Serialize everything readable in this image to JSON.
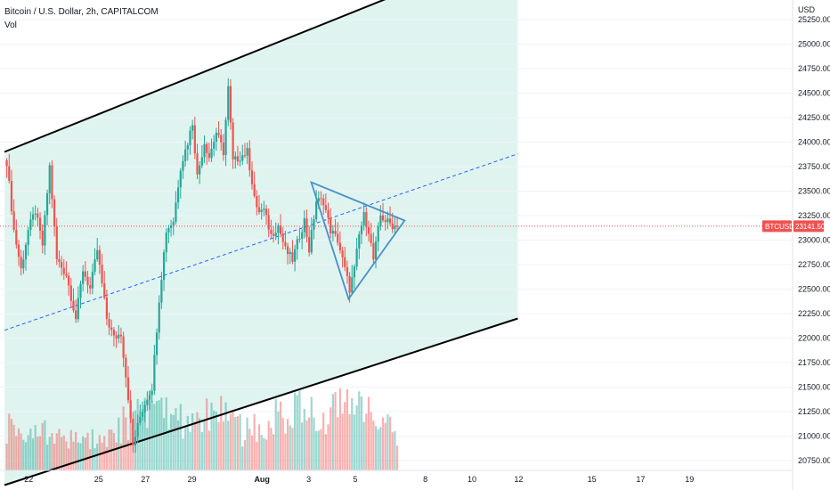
{
  "legend": {
    "title": "Bitcoin / U.S. Dollar, 2h, CAPITALCOM",
    "volume": "Vol"
  },
  "axis": {
    "currency": "USD",
    "y_ticks": [
      "25250.00",
      "25000.00",
      "24750.00",
      "24500.00",
      "24250.00",
      "24000.00",
      "23750.00",
      "23500.00",
      "23250.00",
      "23000.00",
      "22750.00",
      "22500.00",
      "22250.00",
      "22000.00",
      "21750.00",
      "21500.00",
      "21250.00",
      "21000.00",
      "20750.00"
    ],
    "x_ticks": [
      {
        "label": "22",
        "bold": false
      },
      {
        "label": "25",
        "bold": false
      },
      {
        "label": "27",
        "bold": false
      },
      {
        "label": "29",
        "bold": false
      },
      {
        "label": "Aug",
        "bold": true
      },
      {
        "label": "3",
        "bold": false
      },
      {
        "label": "5",
        "bold": false
      },
      {
        "label": "8",
        "bold": false
      },
      {
        "label": "10",
        "bold": false
      },
      {
        "label": "12",
        "bold": false
      },
      {
        "label": "15",
        "bold": false
      },
      {
        "label": "17",
        "bold": false
      },
      {
        "label": "19",
        "bold": false
      }
    ]
  },
  "price_label": {
    "symbol": "BTCUSD",
    "value": "23141.50"
  },
  "colors": {
    "up": "#26a69a",
    "down": "#ef5350",
    "channel_fill": "#d9f2ec",
    "channel_line": "#000000",
    "midline": "#2962ff",
    "triangle": "#4a90c8",
    "price_line": "#ef5350"
  },
  "chart_data": {
    "type": "candlestick",
    "y_range": [
      20650,
      25450
    ],
    "last_price": 23141.5,
    "anchors": [
      [
        0,
        23800
      ],
      [
        3,
        23100
      ],
      [
        6,
        22700
      ],
      [
        9,
        23100
      ],
      [
        12,
        23300
      ],
      [
        15,
        22950
      ],
      [
        18,
        23750
      ],
      [
        21,
        22800
      ],
      [
        25,
        22650
      ],
      [
        29,
        22200
      ],
      [
        32,
        22700
      ],
      [
        35,
        22500
      ],
      [
        38,
        22900
      ],
      [
        42,
        22200
      ],
      [
        45,
        22000
      ],
      [
        48,
        22050
      ],
      [
        51,
        21400
      ],
      [
        53,
        20900
      ],
      [
        56,
        21200
      ],
      [
        59,
        21400
      ],
      [
        61,
        21500
      ],
      [
        64,
        22400
      ],
      [
        67,
        23100
      ],
      [
        70,
        23200
      ],
      [
        73,
        23750
      ],
      [
        76,
        24000
      ],
      [
        78,
        24200
      ],
      [
        80,
        23650
      ],
      [
        83,
        24000
      ],
      [
        85,
        23850
      ],
      [
        88,
        24100
      ],
      [
        91,
        23900
      ],
      [
        93,
        24550
      ],
      [
        95,
        23800
      ],
      [
        98,
        23850
      ],
      [
        101,
        23900
      ],
      [
        103,
        23600
      ],
      [
        105,
        23300
      ],
      [
        108,
        23300
      ],
      [
        111,
        23050
      ],
      [
        114,
        23150
      ],
      [
        117,
        22900
      ],
      [
        120,
        22800
      ],
      [
        123,
        23050
      ],
      [
        125,
        23200
      ],
      [
        127,
        22900
      ],
      [
        130,
        23400
      ],
      [
        133,
        23400
      ],
      [
        136,
        23100
      ],
      [
        139,
        23000
      ],
      [
        142,
        22700
      ],
      [
        144,
        22500
      ],
      [
        146,
        22700
      ],
      [
        148,
        23050
      ],
      [
        150,
        23250
      ],
      [
        152,
        23100
      ],
      [
        154,
        22800
      ],
      [
        157,
        23250
      ],
      [
        159,
        23200
      ],
      [
        162,
        23150
      ],
      [
        164,
        23141.5
      ]
    ],
    "volume_profile": [
      [
        0,
        0.42
      ],
      [
        10,
        0.38
      ],
      [
        20,
        0.35
      ],
      [
        30,
        0.25
      ],
      [
        40,
        0.3
      ],
      [
        50,
        0.45
      ],
      [
        55,
        0.5
      ],
      [
        60,
        0.55
      ],
      [
        70,
        0.48
      ],
      [
        80,
        0.45
      ],
      [
        90,
        0.55
      ],
      [
        100,
        0.35
      ],
      [
        110,
        0.42
      ],
      [
        118,
        0.58
      ],
      [
        125,
        0.65
      ],
      [
        135,
        0.55
      ],
      [
        145,
        0.62
      ],
      [
        155,
        0.48
      ],
      [
        164,
        0.3
      ]
    ],
    "channel": {
      "upper": [
        [
          "Jul 21",
          23900
        ],
        [
          "Aug 12",
          26000
        ]
      ],
      "lower": [
        [
          "Jul 21",
          20500
        ],
        [
          "Aug 12",
          22200
        ]
      ],
      "mid": [
        [
          "Jul 21",
          22080
        ],
        [
          "Aug 12",
          23880
        ]
      ]
    },
    "triangle": [
      [
        23590,
        0
      ],
      [
        23200,
        1
      ],
      [
        22400,
        2
      ]
    ],
    "ylabel": "USD"
  }
}
